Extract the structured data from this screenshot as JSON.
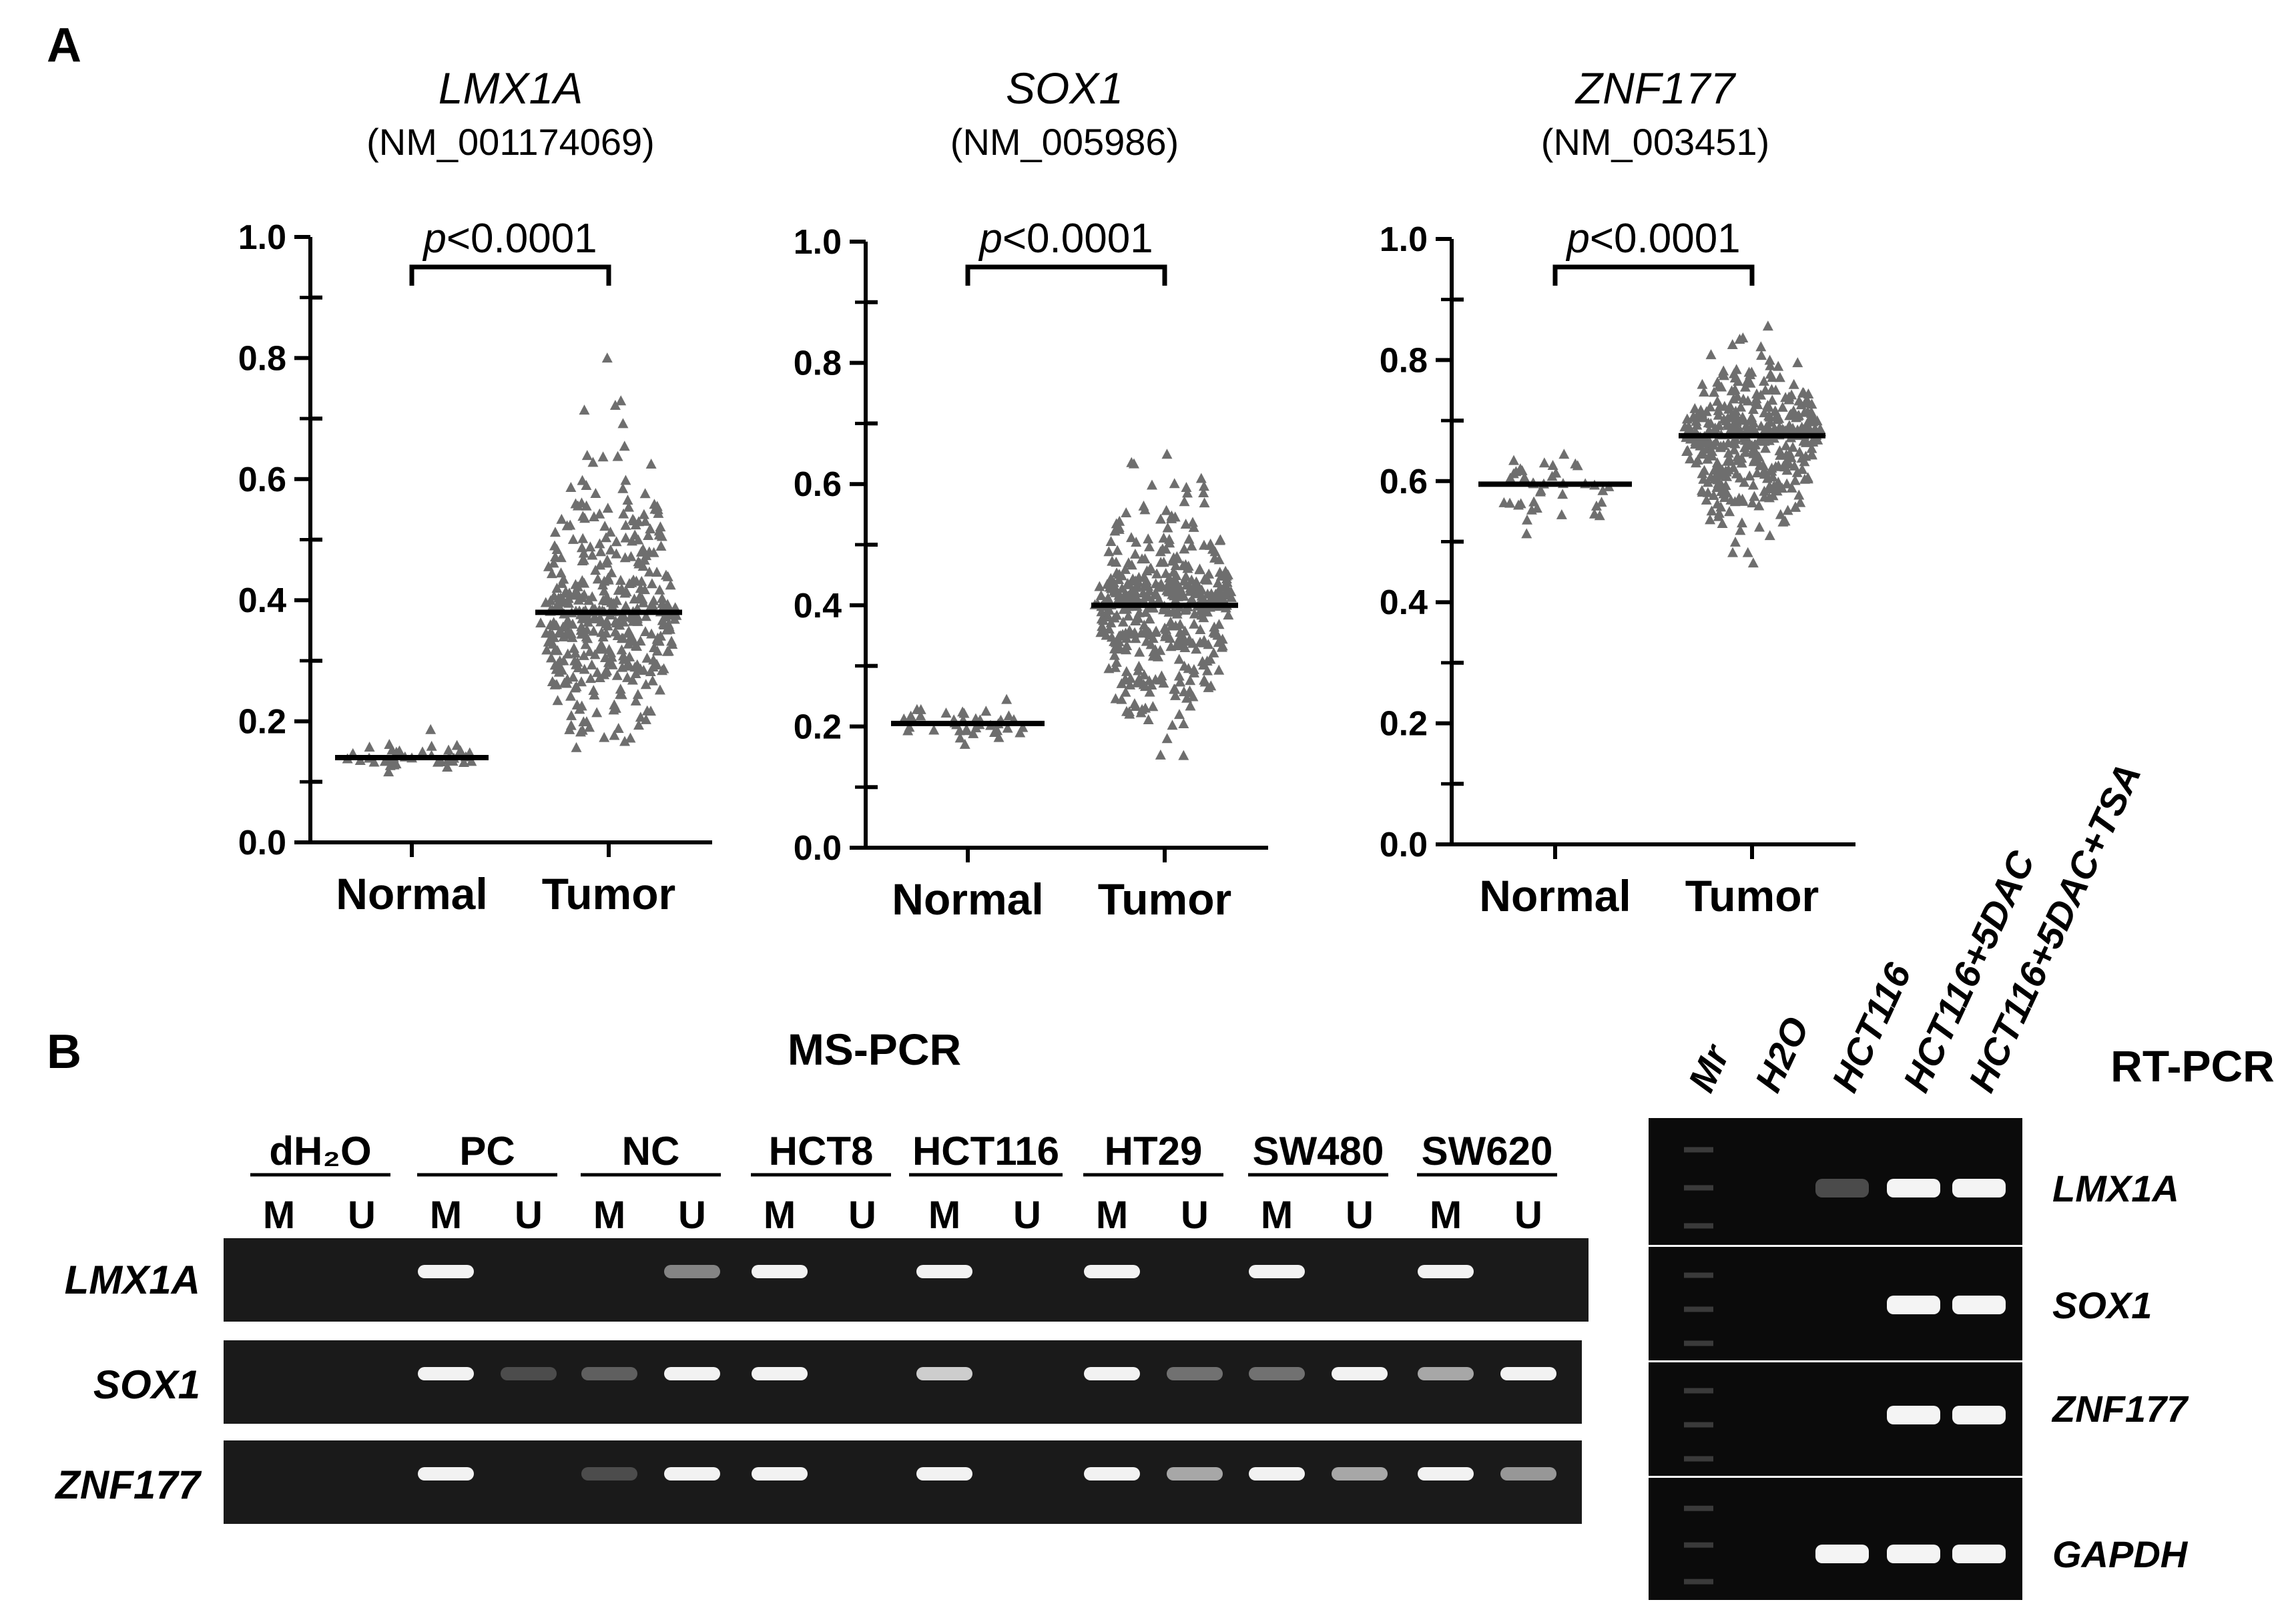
{
  "panel_a": {
    "label": "A",
    "y_ticks": [
      "1.0",
      "0.8",
      "0.6",
      "0.4",
      "0.2",
      "0.0"
    ],
    "group_labels": [
      "Normal",
      "Tumor"
    ],
    "plots": [
      {
        "gene": "LMX1A",
        "accession": "(NM_001174069)",
        "p_value_italic": "p",
        "p_value_rest": "<0.0001"
      },
      {
        "gene": "SOX1",
        "accession": "(NM_005986)",
        "p_value_italic": "p",
        "p_value_rest": "<0.0001"
      },
      {
        "gene": "ZNF177",
        "accession": "(NM_003451)",
        "p_value_italic": "p",
        "p_value_rest": "<0.0001"
      }
    ]
  },
  "panel_b": {
    "label": "B",
    "ms_title": "MS-PCR",
    "rt_title": "RT-PCR",
    "ms_groups": [
      "dH₂O",
      "PC",
      "NC",
      "HCT8",
      "HCT116",
      "HT29",
      "SW480",
      "SW620"
    ],
    "mu_labels": [
      "M",
      "U"
    ],
    "ms_rows": [
      "LMX1A",
      "SOX1",
      "ZNF177"
    ],
    "ms_bands": {
      "LMX1A": [
        0,
        0,
        1,
        0,
        0,
        0.4,
        1,
        0,
        1,
        0,
        1,
        0,
        1,
        0,
        1,
        0
      ],
      "SOX1": [
        0,
        0,
        1,
        0.1,
        0.2,
        1,
        1,
        0,
        0.8,
        0,
        1,
        0.3,
        0.3,
        1,
        0.6,
        1
      ],
      "ZNF177": [
        0,
        0,
        1,
        0,
        0.1,
        1,
        1,
        0,
        1,
        0,
        1,
        0.6,
        1,
        0.6,
        1,
        0.5
      ]
    },
    "rt_lanes": [
      "Mr",
      "H2O",
      "HCT116",
      "HCT116+5DAC",
      "HCT116+5DAC+TSA"
    ],
    "rt_rows": [
      "LMX1A",
      "SOX1",
      "ZNF177",
      "GAPDH"
    ],
    "rt_bands": {
      "LMX1A": [
        0,
        0,
        0.15,
        1,
        1
      ],
      "SOX1": [
        0,
        0,
        0,
        1,
        1
      ],
      "ZNF177": [
        0,
        0,
        0,
        1,
        1
      ],
      "GAPDH": [
        0,
        0,
        1,
        1,
        1
      ]
    }
  },
  "chart_data": [
    {
      "type": "scatter",
      "title": "LMX1A (NM_001174069)",
      "categories": [
        "Normal",
        "Tumor"
      ],
      "ylim": [
        0,
        1.0
      ],
      "y_ticks": [
        0.0,
        0.2,
        0.4,
        0.6,
        0.8,
        1.0
      ],
      "series": [
        {
          "name": "Normal",
          "median": 0.14,
          "range": [
            0.11,
            0.21
          ]
        },
        {
          "name": "Tumor",
          "median": 0.38,
          "range": [
            0.09,
            0.84
          ]
        }
      ],
      "annotation": "p<0.0001",
      "marker_color": "#6e6e6e"
    },
    {
      "type": "scatter",
      "title": "SOX1 (NM_005986)",
      "categories": [
        "Normal",
        "Tumor"
      ],
      "ylim": [
        0,
        1.0
      ],
      "y_ticks": [
        0.0,
        0.2,
        0.4,
        0.6,
        0.8,
        1.0
      ],
      "series": [
        {
          "name": "Normal",
          "median": 0.205,
          "range": [
            0.15,
            0.35
          ]
        },
        {
          "name": "Tumor",
          "median": 0.4,
          "range": [
            0.09,
            0.72
          ]
        }
      ],
      "annotation": "p<0.0001",
      "marker_color": "#6e6e6e"
    },
    {
      "type": "scatter",
      "title": "ZNF177 (NM_003451)",
      "categories": [
        "Normal",
        "Tumor"
      ],
      "ylim": [
        0,
        1.0
      ],
      "y_ticks": [
        0.0,
        0.2,
        0.4,
        0.6,
        0.8,
        1.0
      ],
      "series": [
        {
          "name": "Normal",
          "median": 0.595,
          "range": [
            0.46,
            0.7
          ]
        },
        {
          "name": "Tumor",
          "median": 0.675,
          "range": [
            0.4,
            0.89
          ]
        }
      ],
      "annotation": "p<0.0001",
      "marker_color": "#6e6e6e"
    }
  ]
}
